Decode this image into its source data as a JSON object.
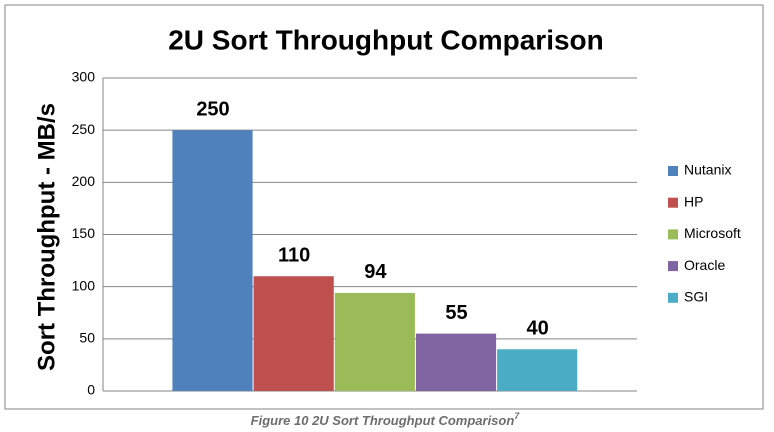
{
  "chart_data": {
    "type": "bar",
    "title": "2U Sort Throughput Comparison",
    "y_label": "Sort Throughput - MB/s",
    "categories": [
      null
    ],
    "series": [
      {
        "name": "Nutanix",
        "color": "#4f81bd",
        "values": [
          250
        ]
      },
      {
        "name": "HP",
        "color": "#c0504d",
        "values": [
          110
        ]
      },
      {
        "name": "Microsoft",
        "color": "#9bbb59",
        "values": [
          94
        ]
      },
      {
        "name": "Oracle",
        "color": "#8064a2",
        "values": [
          55
        ]
      },
      {
        "name": "SGI",
        "color": "#4bacc6",
        "values": [
          40
        ]
      }
    ],
    "ylim": [
      0,
      300
    ],
    "yticks": [
      0,
      50,
      100,
      150,
      200,
      250,
      300
    ],
    "grid": true,
    "legend": "right",
    "data_labels": true
  },
  "caption": {
    "text": "Figure 10 2U Sort Throughput Comparison",
    "superscript": "7"
  }
}
